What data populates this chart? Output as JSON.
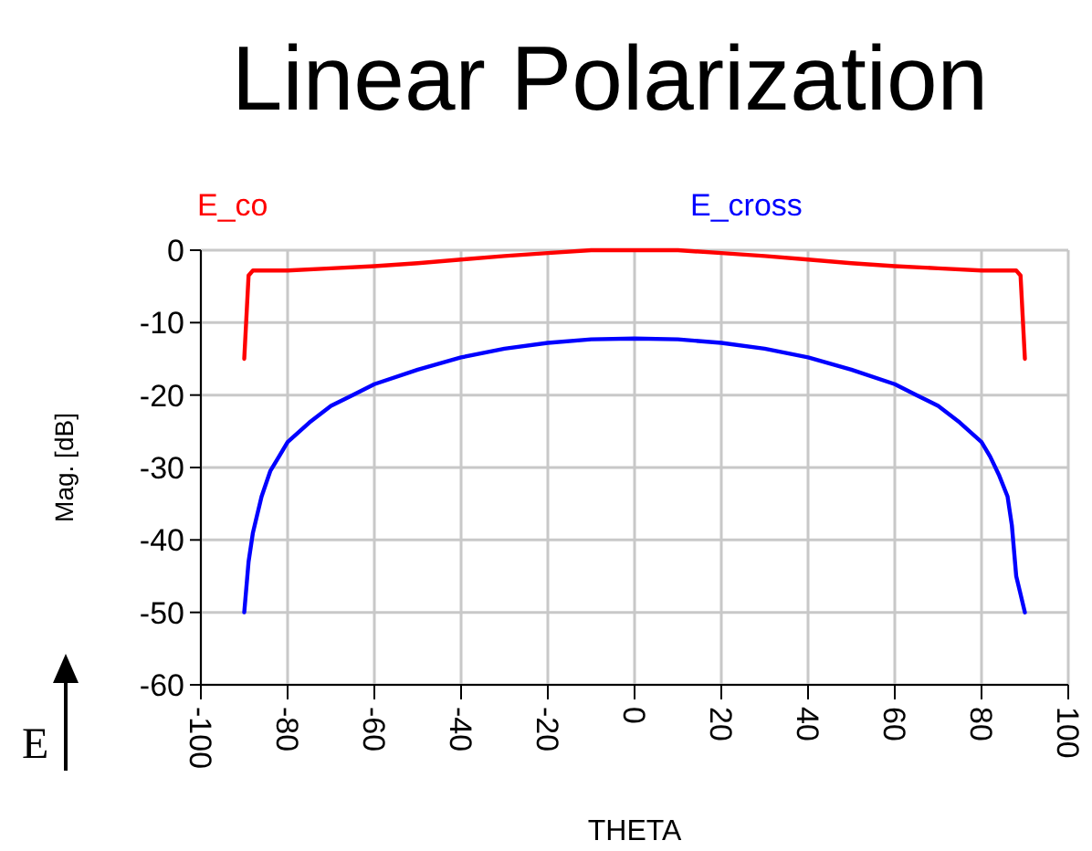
{
  "chart_data": {
    "type": "line",
    "title": "Linear Polarization",
    "xlabel": "THETA",
    "ylabel": "Mag. [dB]",
    "xlim": [
      -100,
      100
    ],
    "xticks": [
      -100,
      -80,
      -60,
      -40,
      -20,
      0,
      20,
      40,
      60,
      80,
      100
    ],
    "ylim": [
      -60,
      0
    ],
    "yticks": [
      -60,
      -50,
      -40,
      -30,
      -20,
      -10,
      0
    ],
    "grid": true,
    "legend": "top",
    "annotations": [
      "E"
    ],
    "series": [
      {
        "name": "E_co",
        "color": "#ff0000",
        "x": [
          -90,
          -89,
          -88,
          -80,
          -70,
          -60,
          -50,
          -40,
          -30,
          -20,
          -10,
          0,
          10,
          20,
          30,
          40,
          50,
          60,
          70,
          80,
          88,
          89,
          90
        ],
        "values": [
          -15,
          -3.5,
          -2.8,
          -2.8,
          -2.5,
          -2.2,
          -1.8,
          -1.3,
          -0.8,
          -0.4,
          0,
          0,
          0,
          -0.4,
          -0.8,
          -1.3,
          -1.8,
          -2.2,
          -2.5,
          -2.8,
          -2.8,
          -3.5,
          -15
        ]
      },
      {
        "name": "E_cross",
        "color": "#0000ff",
        "x": [
          -90,
          -89,
          -88,
          -87,
          -86,
          -84,
          -82,
          -80,
          -75,
          -70,
          -65,
          -60,
          -50,
          -40,
          -30,
          -20,
          -10,
          0,
          10,
          20,
          30,
          40,
          50,
          60,
          65,
          70,
          75,
          80,
          82,
          84,
          86,
          87,
          88,
          89,
          90
        ],
        "values": [
          -50,
          -43,
          -39,
          -36.5,
          -34,
          -30.5,
          -28.5,
          -26.5,
          -23.8,
          -21.5,
          -20,
          -18.5,
          -16.5,
          -14.8,
          -13.6,
          -12.8,
          -12.3,
          -12.2,
          -12.3,
          -12.8,
          -13.6,
          -14.8,
          -16.5,
          -18.5,
          -20,
          -21.5,
          -23.8,
          -26.5,
          -28.5,
          -31,
          -34,
          -38,
          -45,
          -47.5,
          -50
        ]
      }
    ]
  }
}
